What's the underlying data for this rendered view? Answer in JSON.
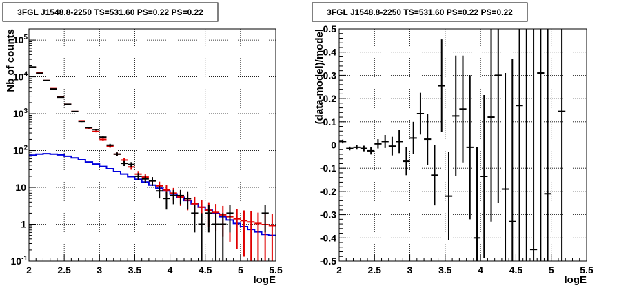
{
  "chart_data": [
    {
      "type": "scatter",
      "title": "3FGL J1548.8-2250 TS=531.60 PS=0.22 PS=0.22",
      "xlabel": "logE",
      "ylabel": "Nb of counts",
      "xlim": [
        2,
        5.5
      ],
      "ylim": [
        0.1,
        200000
      ],
      "ylog": true,
      "grid": true,
      "xticks": [
        "2",
        "2.5",
        "3",
        "3.5",
        "4",
        "4.5",
        "5",
        "5.5"
      ],
      "yticks": [
        "10^{-1}",
        "1",
        "10",
        "10^{2}",
        "10^{3}",
        "10^{4}",
        "10^{5}"
      ],
      "colors": {
        "data": "#000000",
        "model": "#e00000",
        "background": "#0000dd"
      },
      "series": [
        {
          "x": [
            2.05,
            2.15,
            2.25,
            2.35,
            2.45,
            2.55,
            2.65,
            2.75,
            2.85,
            2.95,
            3.05,
            3.15,
            3.25,
            3.35,
            3.45,
            3.55,
            3.65,
            3.75,
            3.85,
            3.95,
            4.05,
            4.15,
            4.25,
            4.35,
            4.45,
            4.55,
            4.65,
            4.75,
            4.85,
            4.95,
            5.05,
            5.15,
            5.25,
            5.35,
            5.45
          ],
          "y": [
            18500,
            12500,
            8000,
            4700,
            2800,
            1800,
            1150,
            620,
            420,
            370,
            230,
            140,
            80,
            45,
            42,
            20,
            17,
            15,
            8,
            5,
            6,
            6,
            5,
            2,
            1,
            2,
            1,
            1,
            2,
            null,
            null,
            null,
            null,
            2,
            null
          ],
          "err": [
            140,
            110,
            90,
            70,
            55,
            45,
            35,
            25,
            20,
            19,
            15,
            12,
            9,
            7,
            6.5,
            4.5,
            4,
            4,
            3,
            2.5,
            2.5,
            2.5,
            2.5,
            1.4,
            1,
            1.4,
            1,
            1,
            1.4,
            null,
            null,
            null,
            null,
            1.4,
            null
          ]
        },
        {
          "x": [
            2.05,
            2.15,
            2.25,
            2.35,
            2.45,
            2.55,
            2.65,
            2.75,
            2.85,
            2.95,
            3.05,
            3.15,
            3.25,
            3.35,
            3.45,
            3.55,
            3.65,
            3.75,
            3.85,
            3.95,
            4.05,
            4.15,
            4.25,
            4.35,
            4.45,
            4.55,
            4.65,
            4.75,
            4.85,
            4.95,
            5.05,
            5.15,
            5.25,
            5.35,
            5.45
          ],
          "y": [
            18000,
            12800,
            8000,
            4800,
            2900,
            1800,
            1150,
            640,
            410,
            330,
            200,
            130,
            80,
            55,
            36,
            23,
            19,
            15,
            11,
            8.5,
            7,
            5.5,
            4.5,
            3.6,
            2.9,
            2.4,
            2.1,
            1.8,
            1.6,
            1.4,
            1.25,
            1.15,
            1.05,
            0.98,
            0.92
          ]
        },
        {
          "x": [
            2.05,
            2.15,
            2.25,
            2.35,
            2.45,
            2.55,
            2.65,
            2.75,
            2.85,
            2.95,
            3.05,
            3.15,
            3.25,
            3.35,
            3.45,
            3.55,
            3.65,
            3.75,
            3.85,
            3.95,
            4.05,
            4.15,
            4.25,
            4.35,
            4.45,
            4.55,
            4.65,
            4.75,
            4.85,
            4.95,
            5.05,
            5.15,
            5.25,
            5.35,
            5.45
          ],
          "y": [
            75,
            80,
            82,
            80,
            76,
            70,
            63,
            56,
            49,
            43,
            37,
            32,
            27,
            23,
            19.5,
            16.5,
            14,
            11.5,
            9.5,
            8,
            6.6,
            5.4,
            4.4,
            3.6,
            2.9,
            2.4,
            1.95,
            1.6,
            1.3,
            1.05,
            0.86,
            0.72,
            0.62,
            0.53,
            0.5
          ]
        }
      ]
    },
    {
      "type": "scatter",
      "title": "3FGL J1548.8-2250 TS=531.60 PS=0.22 PS=0.22",
      "xlabel": "logE",
      "ylabel": "(data-model)/model",
      "xlim": [
        2,
        5.5
      ],
      "ylim": [
        -0.5,
        0.5
      ],
      "grid": true,
      "xticks": [
        "2",
        "2.5",
        "3",
        "3.5",
        "4",
        "4.5",
        "5",
        "5.5"
      ],
      "yticks": [
        "-0.5",
        "-0.4",
        "-0.3",
        "-0.2",
        "-0.1",
        "0",
        "0.1",
        "0.2",
        "0.3",
        "0.4",
        "0.5"
      ],
      "series": [
        {
          "x": [
            2.05,
            2.15,
            2.25,
            2.35,
            2.45,
            2.55,
            2.65,
            2.75,
            2.85,
            2.95,
            3.05,
            3.15,
            3.25,
            3.35,
            3.45,
            3.55,
            3.65,
            3.75,
            3.85,
            3.95,
            4.05,
            4.15,
            4.25,
            4.35,
            4.45,
            4.55,
            4.65,
            4.75,
            4.85,
            4.95,
            5.15
          ],
          "y": [
            0.015,
            -0.015,
            -0.01,
            -0.015,
            -0.025,
            0.005,
            0.015,
            -0.005,
            0.015,
            -0.07,
            0.03,
            0.135,
            0.025,
            -0.13,
            0.255,
            -0.22,
            0.125,
            0.155,
            -0.01,
            -0.4,
            -0.135,
            0.12,
            0.3,
            -0.19,
            -0.33,
            0.17,
            0.5,
            -0.45,
            0.31,
            -0.21,
            0.145
          ],
          "err": [
            0.008,
            0.008,
            0.01,
            0.012,
            0.016,
            0.02,
            0.028,
            0.04,
            0.05,
            0.06,
            0.07,
            0.09,
            0.11,
            0.13,
            0.2,
            0.19,
            0.26,
            0.23,
            0.31,
            0.39,
            0.35,
            0.45,
            0.55,
            0.5,
            0.7,
            0.75,
            1.0,
            1.0,
            1.0,
            1.0,
            1.0
          ]
        }
      ]
    }
  ]
}
